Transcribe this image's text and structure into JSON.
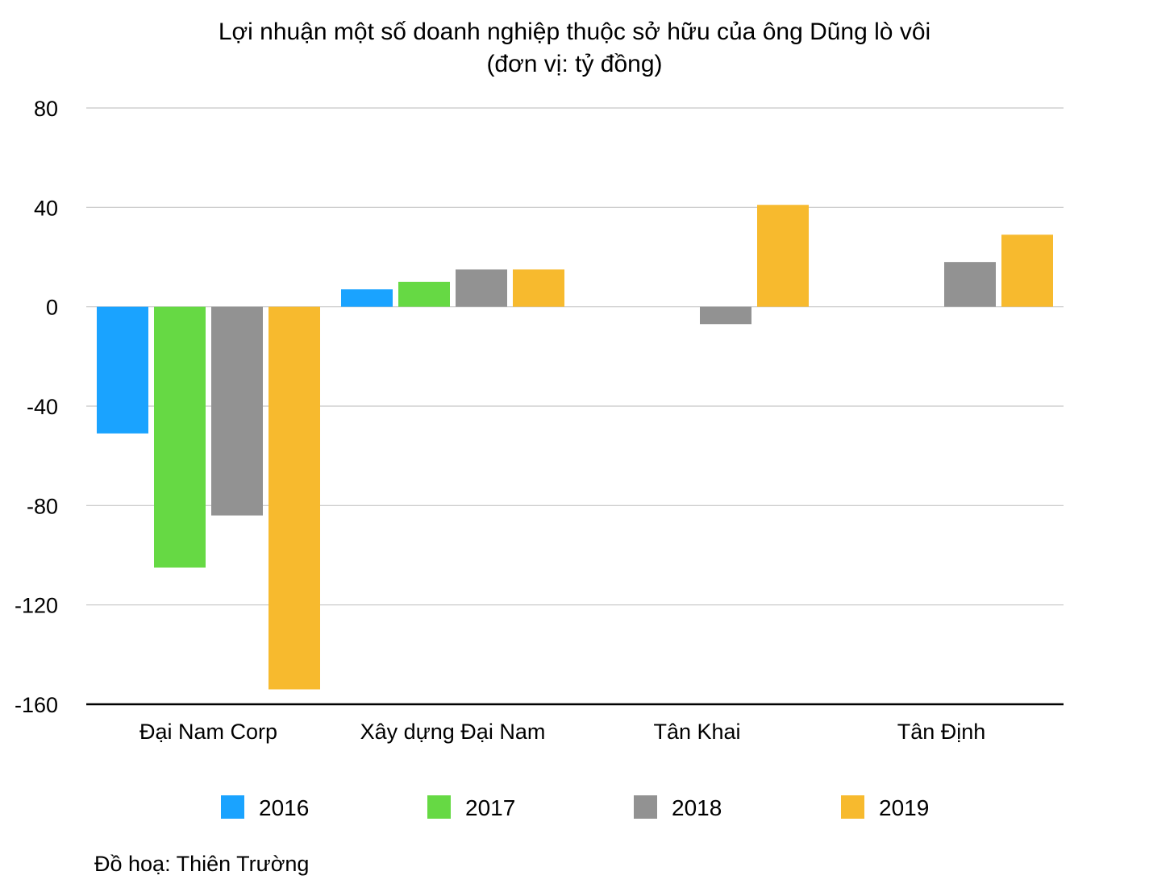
{
  "chart_data": {
    "type": "bar",
    "title": "Lợi nhuận một số doanh nghiệp thuộc sở hữu của ông Dũng lò vôi",
    "subtitle": "(đơn vị: tỷ đồng)",
    "categories": [
      "Đại Nam Corp",
      "Xây dựng Đại Nam",
      "Tân Khai",
      "Tân Định"
    ],
    "series": [
      {
        "name": "2016",
        "color": "#1aa3ff",
        "values": [
          -51,
          7,
          null,
          null
        ]
      },
      {
        "name": "2017",
        "color": "#66d944",
        "values": [
          -105,
          10,
          null,
          null
        ]
      },
      {
        "name": "2018",
        "color": "#929292",
        "values": [
          -84,
          15,
          -7,
          18
        ]
      },
      {
        "name": "2019",
        "color": "#f7ba2e",
        "values": [
          -154,
          15,
          41,
          29
        ]
      }
    ],
    "ylim": [
      -160,
      80
    ],
    "yticks": [
      "80",
      "40",
      "0",
      "-40",
      "-80",
      "-120",
      "-160"
    ],
    "grid": true,
    "legend_position": "bottom",
    "xlabel": "",
    "ylabel": ""
  },
  "credit": "Đồ hoạ: Thiên Trường"
}
